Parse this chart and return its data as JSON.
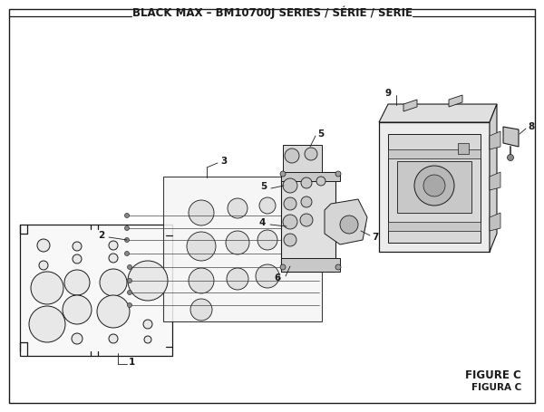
{
  "title": "BLACK MAX – BM10700J SERIES / SÉRIE / SERIE",
  "title_fontsize": 8.5,
  "figure_c_text": "FIGURE C",
  "figura_c_text": "FIGURA C",
  "bg_color": "#ffffff",
  "line_color": "#1a1a1a",
  "border_color": "#1a1a1a",
  "figsize": [
    6.0,
    4.55
  ],
  "dpi": 100
}
